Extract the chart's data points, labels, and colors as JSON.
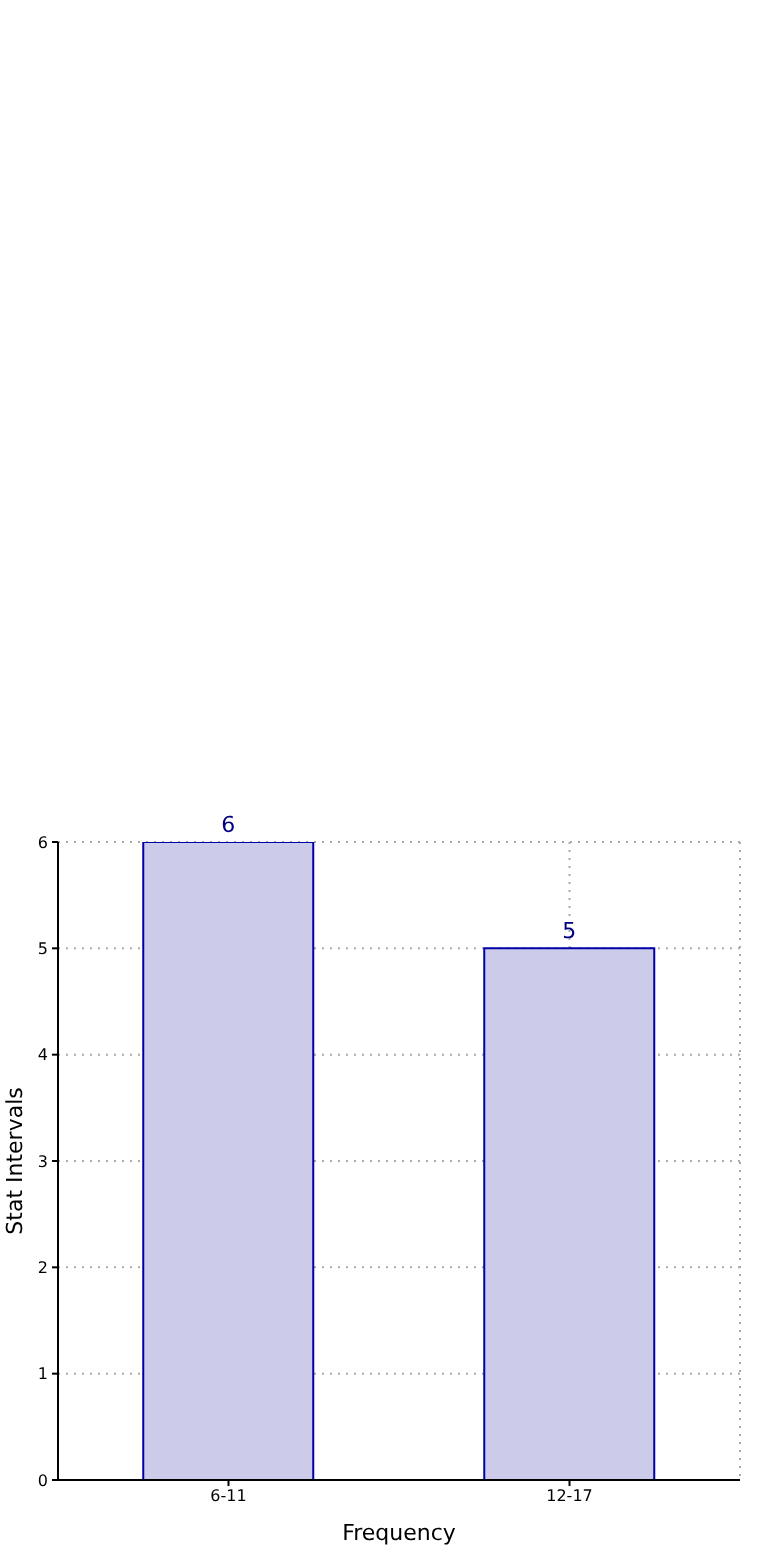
{
  "chart_data": {
    "type": "bar",
    "xlabel": "Frequency",
    "ylabel": "Stat Intervals",
    "categories": [
      "6-11",
      "12-17"
    ],
    "values": [
      6,
      5
    ],
    "color": "#ccccea",
    "ylim": [
      0,
      6
    ],
    "yticks": [
      0,
      1,
      2,
      3,
      4,
      5,
      6
    ],
    "grid": true,
    "data_labels": true
  }
}
